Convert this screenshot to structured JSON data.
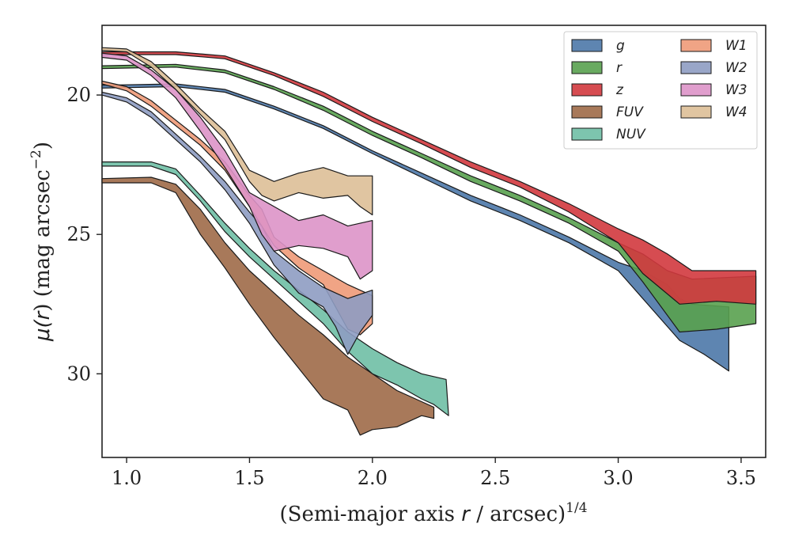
{
  "chart_data": {
    "type": "area",
    "xlabel_parts": [
      "(Semi-major axis ",
      "r",
      " / arcsec)",
      "1/4"
    ],
    "ylabel_parts": [
      "μ(",
      "r",
      ") (mag arcsec",
      "−2",
      ")"
    ],
    "xlim": [
      0.9,
      3.6
    ],
    "ylim": [
      33.0,
      17.5
    ],
    "y_inverted": true,
    "xticks": [
      1.0,
      1.5,
      2.0,
      2.5,
      3.0,
      3.5
    ],
    "xtick_labels": [
      "1.0",
      "1.5",
      "2.0",
      "2.5",
      "3.0",
      "3.5"
    ],
    "yticks": [
      20,
      25,
      30
    ],
    "ytick_labels": [
      "20",
      "25",
      "30"
    ],
    "grid": false,
    "legend": {
      "placement": "top-right",
      "columns": 2
    },
    "series": [
      {
        "name": "g",
        "color": "#4C78A8",
        "upper": [
          [
            0.9,
            19.65
          ],
          [
            1.2,
            19.6
          ],
          [
            1.4,
            19.8
          ],
          [
            1.6,
            20.4
          ],
          [
            1.8,
            21.1
          ],
          [
            2.0,
            22.0
          ],
          [
            2.2,
            22.8
          ],
          [
            2.4,
            23.6
          ],
          [
            2.6,
            24.3
          ],
          [
            2.8,
            25.1
          ],
          [
            3.0,
            26.0
          ],
          [
            3.1,
            26.3
          ],
          [
            3.2,
            26.8
          ],
          [
            3.25,
            27.3
          ],
          [
            3.3,
            27.5
          ],
          [
            3.45,
            27.6
          ]
        ],
        "lower": [
          [
            3.45,
            29.9
          ],
          [
            3.35,
            29.3
          ],
          [
            3.25,
            28.8
          ],
          [
            3.1,
            27.3
          ],
          [
            3.0,
            26.3
          ],
          [
            2.8,
            25.3
          ],
          [
            2.6,
            24.5
          ],
          [
            2.4,
            23.8
          ],
          [
            2.2,
            22.95
          ],
          [
            2.0,
            22.1
          ],
          [
            1.8,
            21.2
          ],
          [
            1.6,
            20.5
          ],
          [
            1.4,
            19.9
          ],
          [
            1.2,
            19.7
          ],
          [
            0.9,
            19.75
          ]
        ]
      },
      {
        "name": "r",
        "color": "#59A14F",
        "upper": [
          [
            0.9,
            18.95
          ],
          [
            1.2,
            18.9
          ],
          [
            1.4,
            19.1
          ],
          [
            1.6,
            19.7
          ],
          [
            1.8,
            20.4
          ],
          [
            2.0,
            21.3
          ],
          [
            2.2,
            22.1
          ],
          [
            2.4,
            22.9
          ],
          [
            2.6,
            23.6
          ],
          [
            2.8,
            24.4
          ],
          [
            3.0,
            25.3
          ],
          [
            3.1,
            25.7
          ],
          [
            3.2,
            26.3
          ],
          [
            3.3,
            26.6
          ],
          [
            3.56,
            26.5
          ]
        ],
        "lower": [
          [
            3.56,
            28.2
          ],
          [
            3.4,
            28.4
          ],
          [
            3.25,
            28.5
          ],
          [
            3.1,
            26.7
          ],
          [
            3.0,
            25.6
          ],
          [
            2.8,
            24.6
          ],
          [
            2.6,
            23.8
          ],
          [
            2.4,
            23.1
          ],
          [
            2.2,
            22.25
          ],
          [
            2.0,
            21.45
          ],
          [
            1.8,
            20.55
          ],
          [
            1.6,
            19.8
          ],
          [
            1.4,
            19.2
          ],
          [
            1.2,
            19.0
          ],
          [
            0.9,
            19.05
          ]
        ]
      },
      {
        "name": "z",
        "color": "#D1393E",
        "upper": [
          [
            0.9,
            18.45
          ],
          [
            1.2,
            18.45
          ],
          [
            1.4,
            18.6
          ],
          [
            1.6,
            19.2
          ],
          [
            1.8,
            19.9
          ],
          [
            2.0,
            20.8
          ],
          [
            2.2,
            21.6
          ],
          [
            2.4,
            22.4
          ],
          [
            2.6,
            23.1
          ],
          [
            2.8,
            23.9
          ],
          [
            3.0,
            24.8
          ],
          [
            3.1,
            25.2
          ],
          [
            3.2,
            25.7
          ],
          [
            3.3,
            26.3
          ],
          [
            3.56,
            26.3
          ]
        ],
        "lower": [
          [
            3.56,
            27.5
          ],
          [
            3.4,
            27.4
          ],
          [
            3.25,
            27.5
          ],
          [
            3.1,
            26.4
          ],
          [
            3.0,
            25.3
          ],
          [
            2.8,
            24.2
          ],
          [
            2.6,
            23.3
          ],
          [
            2.4,
            22.6
          ],
          [
            2.2,
            21.75
          ],
          [
            2.0,
            20.95
          ],
          [
            1.8,
            20.05
          ],
          [
            1.6,
            19.3
          ],
          [
            1.4,
            18.7
          ],
          [
            1.2,
            18.55
          ],
          [
            0.9,
            18.55
          ]
        ]
      },
      {
        "name": "FUV",
        "color": "#9E6A48",
        "upper": [
          [
            0.9,
            23.0
          ],
          [
            1.1,
            22.95
          ],
          [
            1.2,
            23.2
          ],
          [
            1.3,
            24.1
          ],
          [
            1.4,
            25.3
          ],
          [
            1.5,
            26.3
          ],
          [
            1.6,
            27.1
          ],
          [
            1.7,
            27.9
          ],
          [
            1.8,
            28.6
          ],
          [
            1.9,
            29.4
          ],
          [
            2.0,
            30.0
          ],
          [
            2.1,
            30.6
          ],
          [
            2.2,
            31.0
          ],
          [
            2.25,
            31.2
          ]
        ],
        "lower": [
          [
            2.25,
            31.6
          ],
          [
            2.2,
            31.5
          ],
          [
            2.1,
            31.9
          ],
          [
            2.0,
            32.0
          ],
          [
            1.95,
            32.2
          ],
          [
            1.9,
            31.3
          ],
          [
            1.8,
            30.9
          ],
          [
            1.7,
            29.8
          ],
          [
            1.6,
            28.7
          ],
          [
            1.5,
            27.5
          ],
          [
            1.4,
            26.2
          ],
          [
            1.3,
            25.0
          ],
          [
            1.2,
            23.5
          ],
          [
            1.1,
            23.15
          ],
          [
            0.9,
            23.15
          ]
        ]
      },
      {
        "name": "NUV",
        "color": "#6FBFA5",
        "upper": [
          [
            0.9,
            22.4
          ],
          [
            1.1,
            22.4
          ],
          [
            1.2,
            22.65
          ],
          [
            1.3,
            23.6
          ],
          [
            1.4,
            24.6
          ],
          [
            1.5,
            25.5
          ],
          [
            1.6,
            26.3
          ],
          [
            1.7,
            27.0
          ],
          [
            1.8,
            27.7
          ],
          [
            1.9,
            28.5
          ],
          [
            2.0,
            29.1
          ],
          [
            2.1,
            29.6
          ],
          [
            2.2,
            30.0
          ],
          [
            2.3,
            30.2
          ]
        ],
        "lower": [
          [
            2.31,
            31.5
          ],
          [
            2.25,
            31.1
          ],
          [
            2.2,
            30.9
          ],
          [
            2.1,
            30.4
          ],
          [
            2.0,
            30.0
          ],
          [
            1.9,
            29.2
          ],
          [
            1.8,
            28.2
          ],
          [
            1.7,
            27.4
          ],
          [
            1.6,
            26.6
          ],
          [
            1.5,
            25.8
          ],
          [
            1.4,
            24.9
          ],
          [
            1.3,
            23.8
          ],
          [
            1.2,
            22.85
          ],
          [
            1.1,
            22.55
          ],
          [
            0.9,
            22.55
          ]
        ]
      },
      {
        "name": "W1",
        "color": "#EE9A78",
        "upper": [
          [
            0.9,
            19.5
          ],
          [
            1.0,
            19.7
          ],
          [
            1.1,
            20.2
          ],
          [
            1.2,
            20.9
          ],
          [
            1.3,
            21.6
          ],
          [
            1.4,
            22.4
          ],
          [
            1.5,
            23.6
          ],
          [
            1.55,
            24.1
          ],
          [
            1.6,
            25.1
          ],
          [
            1.7,
            25.8
          ],
          [
            1.8,
            26.3
          ],
          [
            1.9,
            26.8
          ],
          [
            2.0,
            27.2
          ]
        ],
        "lower": [
          [
            2.0,
            28.2
          ],
          [
            1.95,
            28.6
          ],
          [
            1.9,
            28.4
          ],
          [
            1.8,
            26.8
          ],
          [
            1.7,
            26.2
          ],
          [
            1.6,
            25.4
          ],
          [
            1.5,
            24.0
          ],
          [
            1.4,
            22.7
          ],
          [
            1.3,
            21.8
          ],
          [
            1.2,
            21.1
          ],
          [
            1.1,
            20.4
          ],
          [
            1.0,
            19.85
          ],
          [
            0.9,
            19.6
          ]
        ]
      },
      {
        "name": "W2",
        "color": "#8E9CC2",
        "upper": [
          [
            0.9,
            19.9
          ],
          [
            1.0,
            20.1
          ],
          [
            1.1,
            20.6
          ],
          [
            1.2,
            21.4
          ],
          [
            1.3,
            22.2
          ],
          [
            1.4,
            23.1
          ],
          [
            1.5,
            24.2
          ],
          [
            1.55,
            24.7
          ],
          [
            1.6,
            25.6
          ],
          [
            1.7,
            26.3
          ],
          [
            1.8,
            26.9
          ],
          [
            1.9,
            27.3
          ],
          [
            2.0,
            27.0
          ]
        ],
        "lower": [
          [
            2.0,
            27.9
          ],
          [
            1.95,
            28.5
          ],
          [
            1.9,
            29.3
          ],
          [
            1.85,
            28.3
          ],
          [
            1.8,
            27.6
          ],
          [
            1.7,
            27.1
          ],
          [
            1.6,
            26.1
          ],
          [
            1.5,
            24.6
          ],
          [
            1.4,
            23.4
          ],
          [
            1.3,
            22.4
          ],
          [
            1.2,
            21.6
          ],
          [
            1.1,
            20.8
          ],
          [
            1.0,
            20.25
          ],
          [
            0.9,
            20.0
          ]
        ]
      },
      {
        "name": "W3",
        "color": "#DD94C8",
        "upper": [
          [
            0.9,
            18.5
          ],
          [
            1.0,
            18.6
          ],
          [
            1.1,
            19.1
          ],
          [
            1.2,
            19.8
          ],
          [
            1.3,
            20.8
          ],
          [
            1.4,
            22.0
          ],
          [
            1.5,
            23.5
          ],
          [
            1.6,
            24.0
          ],
          [
            1.7,
            24.5
          ],
          [
            1.8,
            24.3
          ],
          [
            1.9,
            24.7
          ],
          [
            2.0,
            24.5
          ]
        ],
        "lower": [
          [
            2.0,
            26.3
          ],
          [
            1.95,
            26.6
          ],
          [
            1.9,
            25.8
          ],
          [
            1.8,
            25.5
          ],
          [
            1.7,
            25.4
          ],
          [
            1.6,
            25.6
          ],
          [
            1.55,
            25.0
          ],
          [
            1.5,
            24.0
          ],
          [
            1.4,
            22.6
          ],
          [
            1.3,
            21.3
          ],
          [
            1.2,
            20.1
          ],
          [
            1.1,
            19.3
          ],
          [
            1.0,
            18.75
          ],
          [
            0.9,
            18.65
          ]
        ]
      },
      {
        "name": "W4",
        "color": "#DDBF97",
        "upper": [
          [
            0.9,
            18.3
          ],
          [
            1.0,
            18.35
          ],
          [
            1.1,
            18.8
          ],
          [
            1.2,
            19.6
          ],
          [
            1.3,
            20.5
          ],
          [
            1.4,
            21.3
          ],
          [
            1.5,
            22.7
          ],
          [
            1.6,
            23.1
          ],
          [
            1.7,
            22.8
          ],
          [
            1.8,
            22.6
          ],
          [
            1.9,
            22.9
          ],
          [
            2.0,
            22.9
          ]
        ],
        "lower": [
          [
            2.0,
            24.3
          ],
          [
            1.95,
            24.0
          ],
          [
            1.9,
            23.6
          ],
          [
            1.8,
            23.7
          ],
          [
            1.7,
            23.5
          ],
          [
            1.6,
            23.8
          ],
          [
            1.55,
            23.6
          ],
          [
            1.5,
            23.1
          ],
          [
            1.4,
            21.6
          ],
          [
            1.3,
            20.7
          ],
          [
            1.2,
            19.8
          ],
          [
            1.1,
            19.0
          ],
          [
            1.0,
            18.45
          ],
          [
            0.9,
            18.4
          ]
        ]
      }
    ]
  }
}
